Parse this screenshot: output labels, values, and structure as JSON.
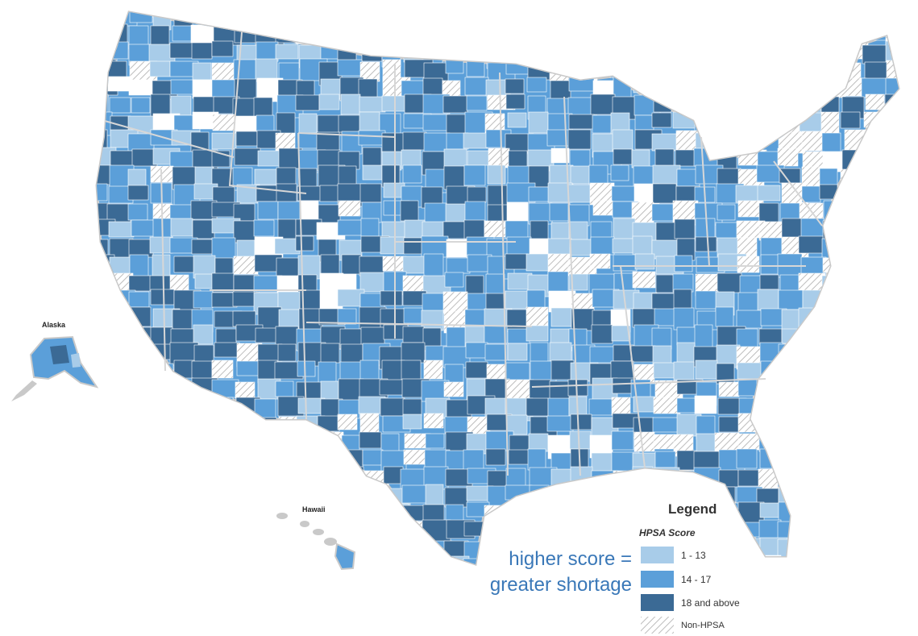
{
  "map": {
    "labels": {
      "alaska": "Alaska",
      "hawaii": "Hawaii"
    },
    "colors": {
      "low": "#a8cce9",
      "mid": "#5b9fd9",
      "high": "#3b6a95",
      "none": "#ffffff",
      "border": "#c9c9c9"
    }
  },
  "legend": {
    "title": "Legend",
    "subtitle": "HPSA Score",
    "items": [
      {
        "label": "1 - 13",
        "color": "#a8cce9"
      },
      {
        "label": "14 - 17",
        "color": "#5b9fd9"
      },
      {
        "label": "18 and above",
        "color": "#3b6a95"
      },
      {
        "label": "Non-HPSA",
        "color": "hatched"
      }
    ]
  },
  "annotation": {
    "line1": "higher score =",
    "line2": "greater shortage"
  }
}
